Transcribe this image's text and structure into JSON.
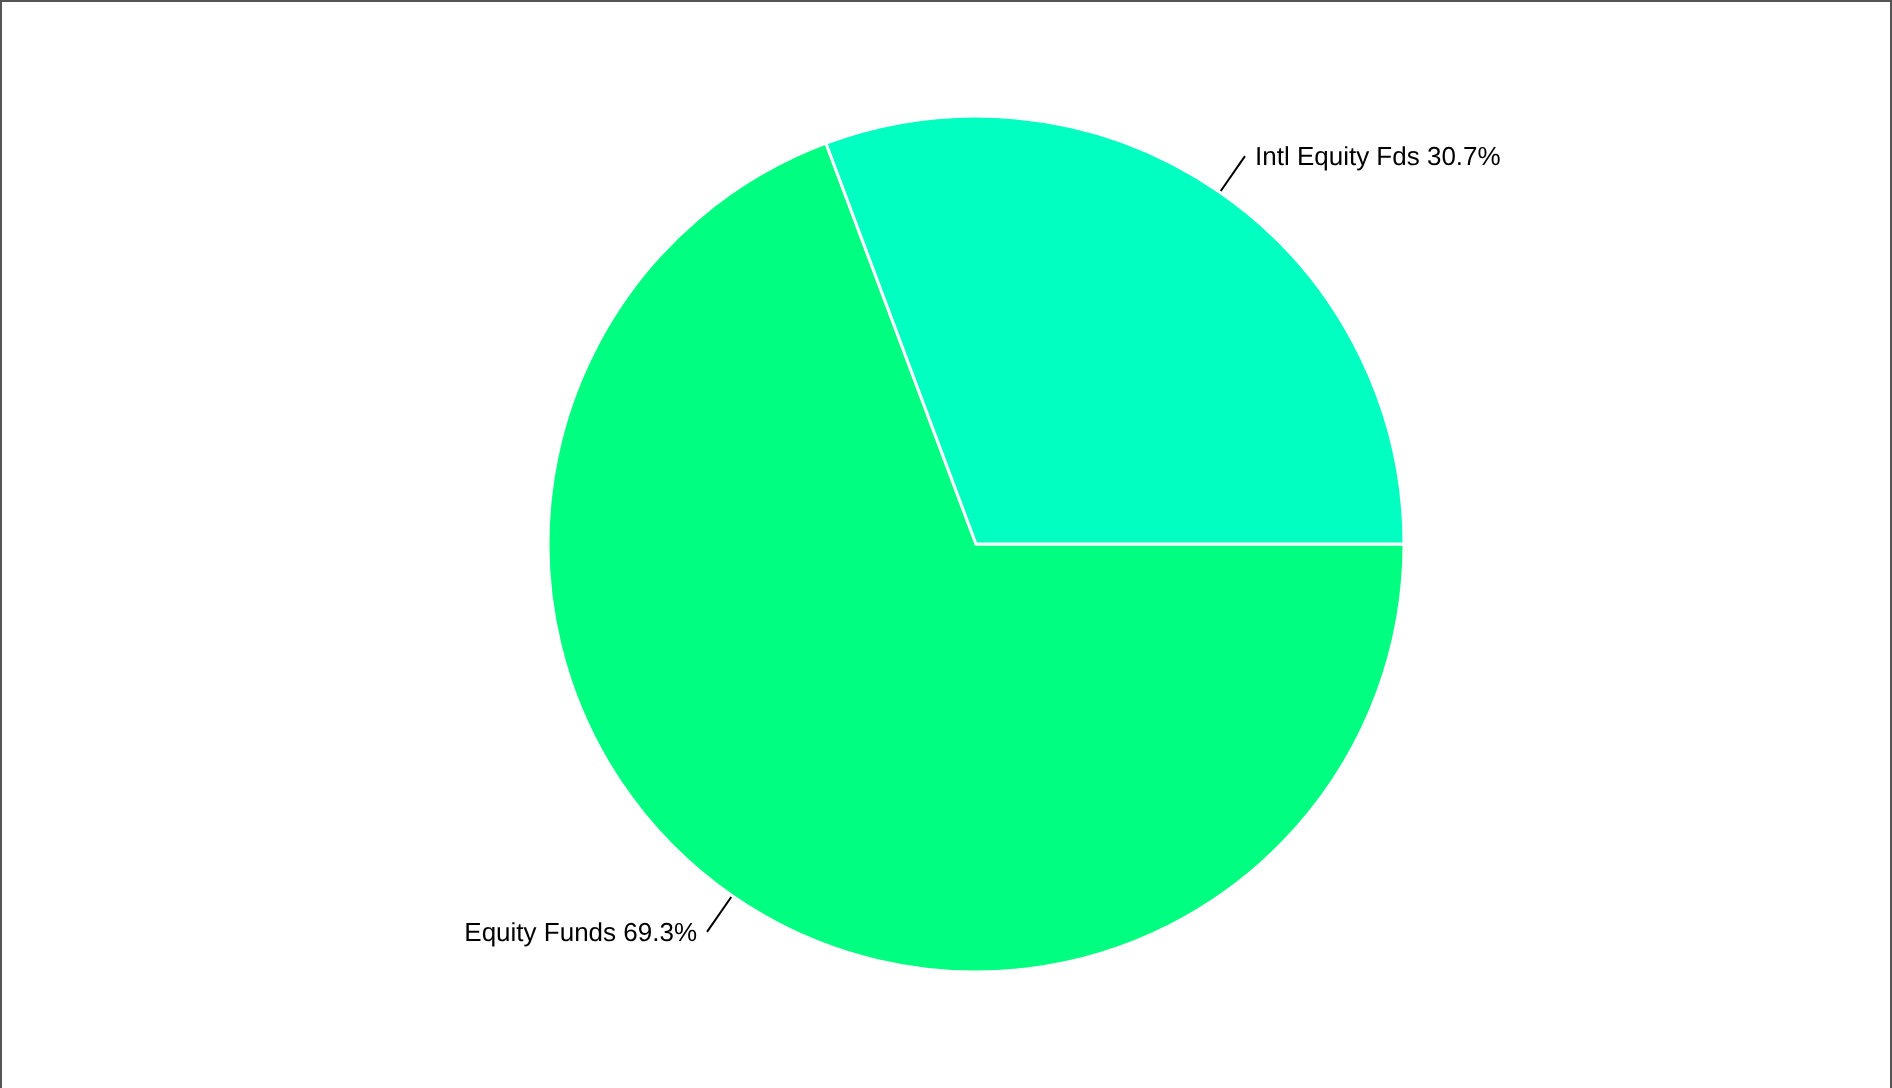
{
  "chart_data": {
    "type": "pie",
    "categories": [
      "Equity Funds",
      "Intl Equity Fds"
    ],
    "values": [
      69.3,
      30.7
    ],
    "value_labels": [
      "69.3%",
      "30.7%"
    ],
    "colors": [
      "#00ff80",
      "#00ffc0"
    ],
    "legend": false
  }
}
